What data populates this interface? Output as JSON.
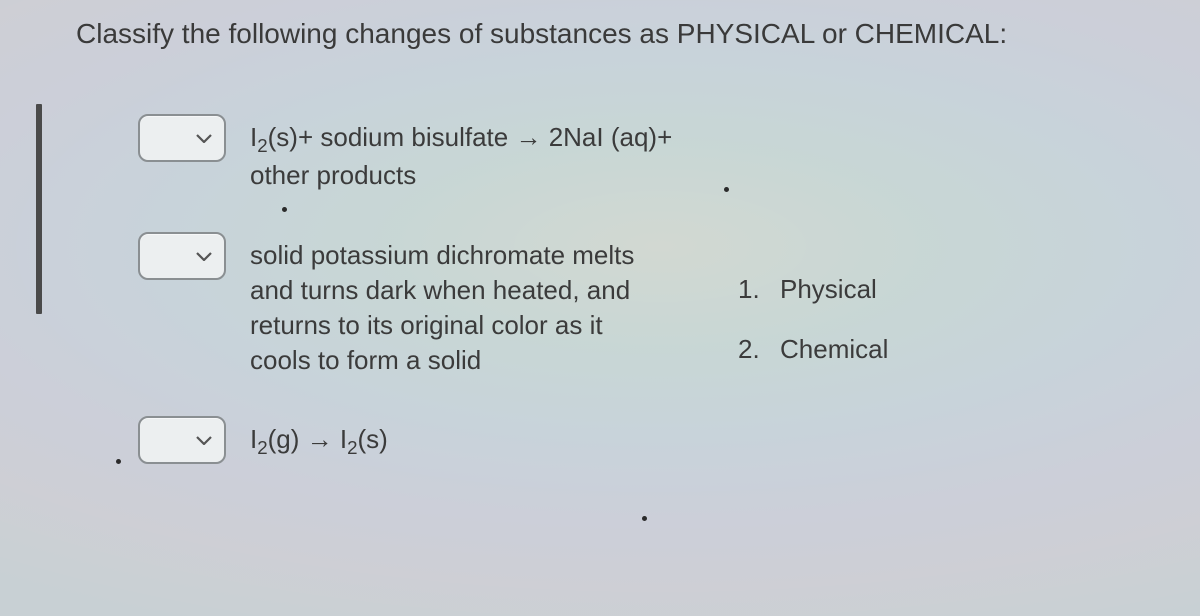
{
  "question": "Classify the following changes of substances as PHYSICAL or CHEMICAL:",
  "items": [
    {
      "html": "I<span class='sub'>2</span>(s)+ sodium bisulfate → 2NaI (aq)+ other products"
    },
    {
      "html": "solid potassium dichromate melts and turns dark when heated, and returns to its original color as it cools to form a solid"
    },
    {
      "html": "I<span class='sub'>2</span>(g) → I<span class='sub'>2</span>(s)"
    }
  ],
  "answers": [
    {
      "num": "1. ",
      "label": "Physical"
    },
    {
      "num": "2.",
      "label": "Chemical"
    }
  ],
  "colors": {
    "page_bg": "#c8d0d4",
    "text": "#3b3b3b",
    "rule": "#4a4a4a",
    "select_bg": "#eceff0",
    "select_border": "#8a8f92"
  }
}
